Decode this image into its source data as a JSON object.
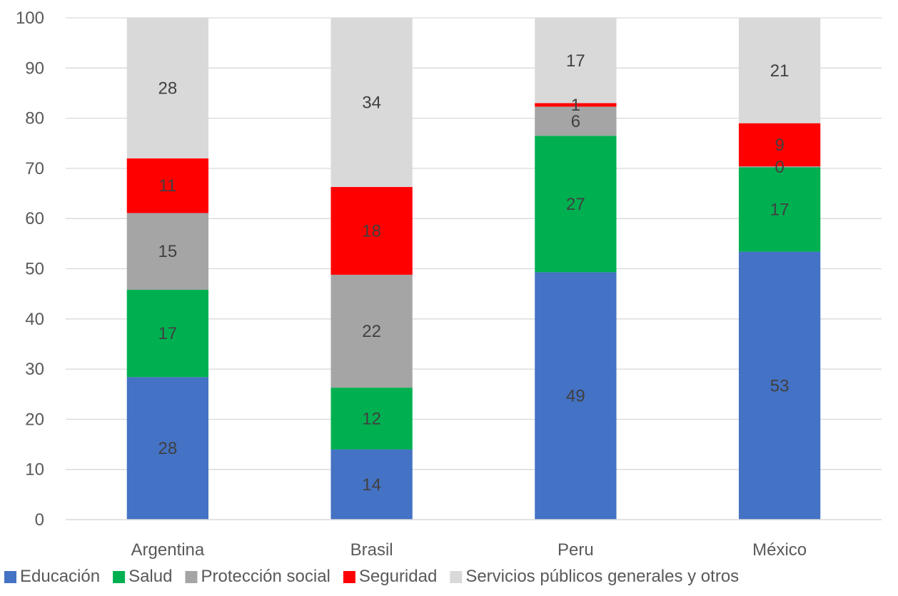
{
  "chart_data": {
    "type": "bar",
    "stacked": true,
    "categories": [
      "Argentina",
      "Brasil",
      "Peru",
      "México"
    ],
    "series": [
      {
        "name": "Educación",
        "color": "#4472C4",
        "values": [
          28.4,
          14.0,
          49.3,
          53.4
        ],
        "labels": [
          "28",
          "14",
          "49",
          "53"
        ]
      },
      {
        "name": "Salud",
        "color": "#00B050",
        "values": [
          17.4,
          12.3,
          27.2,
          16.8
        ],
        "labels": [
          "17",
          "12",
          "27",
          "17"
        ]
      },
      {
        "name": "Protección social",
        "color": "#A5A5A5",
        "values": [
          15.3,
          22.5,
          5.8,
          0.2
        ],
        "labels": [
          "15",
          "22",
          "6",
          "0"
        ]
      },
      {
        "name": "Seguridad",
        "color": "#FF0000",
        "values": [
          10.9,
          17.5,
          0.7,
          8.6
        ],
        "labels": [
          "11",
          "18",
          "1",
          "9"
        ]
      },
      {
        "name": "Servicios públicos generales y otros",
        "color": "#D9D9D9",
        "values": [
          28.0,
          33.7,
          17.0,
          21.0
        ],
        "labels": [
          "28",
          "34",
          "17",
          "21"
        ]
      }
    ],
    "ylim": [
      0,
      100
    ],
    "yticks": [
      0,
      10,
      20,
      30,
      40,
      50,
      60,
      70,
      80,
      90,
      100
    ],
    "grid": true,
    "legend_position": "bottom",
    "title": "",
    "xlabel": "",
    "ylabel": ""
  }
}
